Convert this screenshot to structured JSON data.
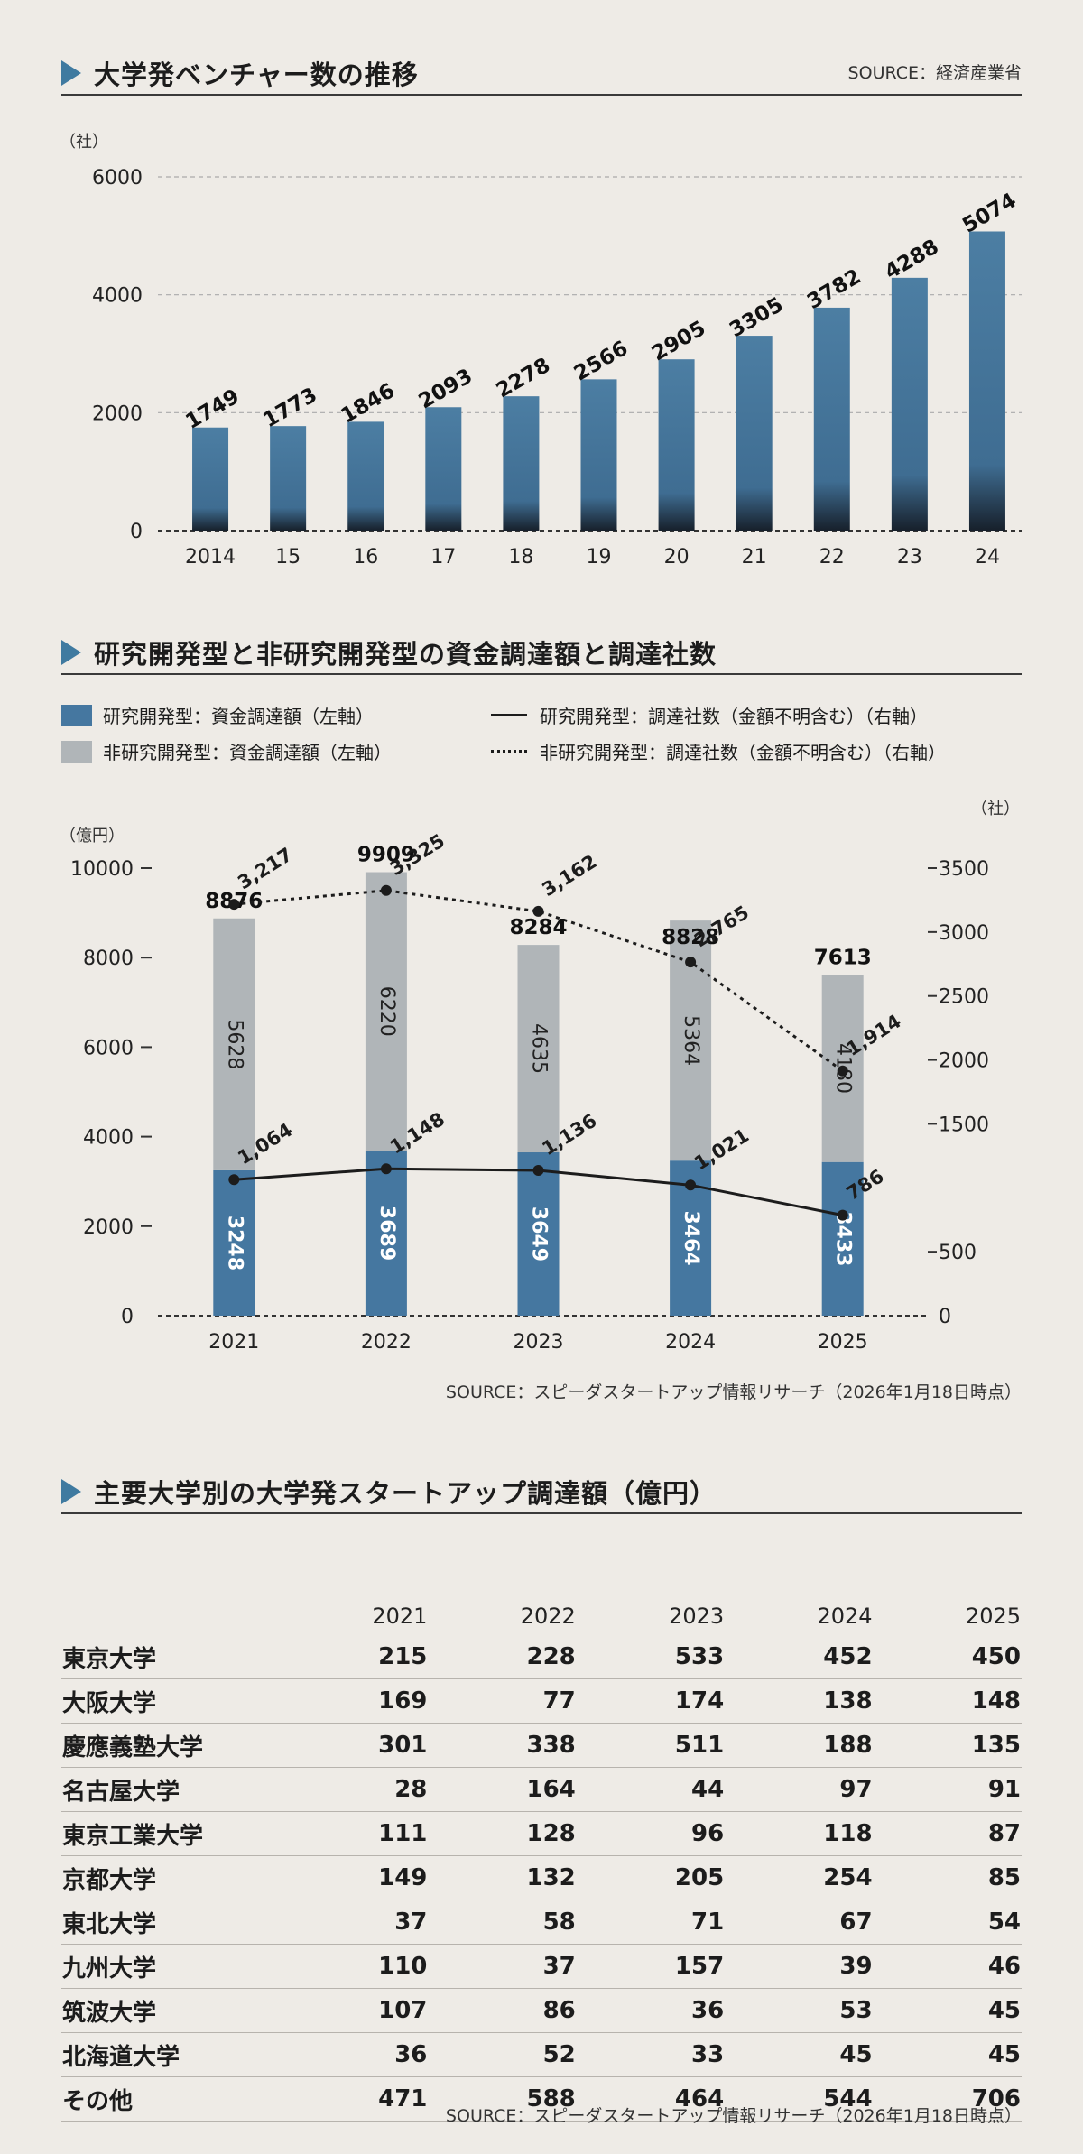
{
  "chart_data": [
    {
      "type": "bar",
      "title": "大学発ベンチャー数の推移",
      "source": "SOURCE：経済産業省",
      "ylabel": "（社）",
      "ylim": [
        0,
        6000
      ],
      "yticks": [
        "6000",
        "4000",
        "2000",
        "0"
      ],
      "categories": [
        "2014",
        "15",
        "16",
        "17",
        "18",
        "19",
        "20",
        "21",
        "22",
        "23",
        "24"
      ],
      "values": [
        1749,
        1773,
        1846,
        2093,
        2278,
        2566,
        2905,
        3305,
        3782,
        4288,
        5074
      ],
      "data_labels": [
        "1749",
        "1773",
        "1846",
        "2093",
        "2278",
        "2566",
        "2905",
        "3305",
        "3782",
        "4288",
        "5074"
      ]
    },
    {
      "type": "bar",
      "title": "研究開発型と非研究開発型の資金調達額と調達社数",
      "source": "SOURCE：スピーダスタートアップ情報リサーチ（2026年1月18日時点）",
      "ylabel_left": "（億円）",
      "ylabel_right": "（社）",
      "ylim_left": [
        0,
        10000
      ],
      "ylim_right": [
        0,
        3500
      ],
      "yticks_left": [
        "10000",
        "8000",
        "6000",
        "4000",
        "2000",
        "0"
      ],
      "yticks_right": [
        "3500",
        "3000",
        "2500",
        "2000",
        "1500",
        "500",
        "0"
      ],
      "categories": [
        "2021",
        "2022",
        "2023",
        "2024",
        "2025"
      ],
      "legend": [
        "研究開発型：資金調達額（左軸）",
        "非研究開発型：資金調達額（左軸）",
        "研究開発型：調達社数（金額不明含む）（右軸）",
        "非研究開発型：調達社数（金額不明含む）（右軸）"
      ],
      "series": [
        {
          "name": "研究開発型：資金調達額",
          "values": [
            3248,
            3689,
            3649,
            3464,
            3433
          ],
          "labels": [
            "3248",
            "3689",
            "3649",
            "3464",
            "3433"
          ],
          "color": "#4577a0"
        },
        {
          "name": "非研究開発型：資金調達額",
          "values": [
            5628,
            6220,
            4635,
            5364,
            4180
          ],
          "labels": [
            "5628",
            "6220",
            "4635",
            "5364",
            "4180"
          ],
          "color": "#b0b5b8"
        },
        {
          "name": "研究開発型：調達社数",
          "axis": "right",
          "values": [
            1064,
            1148,
            1136,
            1021,
            786
          ],
          "labels": [
            "1,064",
            "1,148",
            "1,136",
            "1,021",
            "786"
          ]
        },
        {
          "name": "非研究開発型：調達社数",
          "axis": "right",
          "values": [
            3217,
            3325,
            3162,
            2765,
            1914
          ],
          "labels": [
            "3,217",
            "3,325",
            "3,162",
            "2,765",
            "1,914"
          ]
        }
      ],
      "totals": [
        "8876",
        "9909",
        "8284",
        "8828",
        "7613"
      ]
    },
    {
      "type": "table",
      "title": "主要大学別の大学発スタートアップ調達額（億円）",
      "source": "SOURCE：スピーダスタートアップ情報リサーチ（2026年1月18日時点）",
      "columns": [
        "2021",
        "2022",
        "2023",
        "2024",
        "2025"
      ],
      "rows": [
        {
          "name": "東京大学",
          "values": [
            "215",
            "228",
            "533",
            "452",
            "450"
          ]
        },
        {
          "name": "大阪大学",
          "values": [
            "169",
            "77",
            "174",
            "138",
            "148"
          ]
        },
        {
          "name": "慶應義塾大学",
          "values": [
            "301",
            "338",
            "511",
            "188",
            "135"
          ]
        },
        {
          "name": "名古屋大学",
          "values": [
            "28",
            "164",
            "44",
            "97",
            "91"
          ]
        },
        {
          "name": "東京工業大学",
          "values": [
            "111",
            "128",
            "96",
            "118",
            "87"
          ]
        },
        {
          "name": "京都大学",
          "values": [
            "149",
            "132",
            "205",
            "254",
            "85"
          ]
        },
        {
          "name": "東北大学",
          "values": [
            "37",
            "58",
            "71",
            "67",
            "54"
          ]
        },
        {
          "name": "九州大学",
          "values": [
            "110",
            "37",
            "157",
            "39",
            "46"
          ]
        },
        {
          "name": "筑波大学",
          "values": [
            "107",
            "86",
            "36",
            "53",
            "45"
          ]
        },
        {
          "name": "北海道大学",
          "values": [
            "36",
            "52",
            "33",
            "45",
            "45"
          ]
        },
        {
          "name": "その他",
          "values": [
            "471",
            "588",
            "464",
            "544",
            "706"
          ]
        }
      ]
    }
  ]
}
